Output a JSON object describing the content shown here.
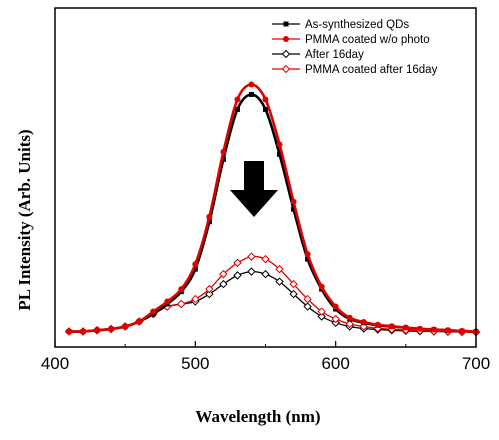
{
  "chart_data": {
    "type": "line",
    "xlabel": "Wavelength (nm)",
    "ylabel": "PL Intensity (Arb. Units)",
    "xlim": [
      400,
      700
    ],
    "ylim": [
      0,
      1.05
    ],
    "x_ticks": [
      "400",
      "500",
      "600",
      "700"
    ],
    "y_ticks_labeled": false,
    "grid": false,
    "legend_position": "top-right",
    "annotation": "down-arrow-between-peak-groups",
    "series": [
      {
        "name": "As-synthesized QDs",
        "color": "#000000",
        "marker": "filled-square",
        "x": [
          410,
          420,
          430,
          440,
          450,
          460,
          470,
          480,
          490,
          500,
          510,
          520,
          530,
          540,
          550,
          560,
          570,
          580,
          590,
          600,
          610,
          620,
          630,
          640,
          650,
          660,
          670,
          680,
          690,
          700
        ],
        "y": [
          0.01,
          0.01,
          0.015,
          0.02,
          0.03,
          0.05,
          0.08,
          0.12,
          0.17,
          0.26,
          0.45,
          0.7,
          0.9,
          0.96,
          0.9,
          0.72,
          0.5,
          0.3,
          0.18,
          0.1,
          0.06,
          0.045,
          0.035,
          0.03,
          0.025,
          0.02,
          0.018,
          0.015,
          0.012,
          0.01
        ]
      },
      {
        "name": "PMMA coated w/o photo",
        "color": "#e00000",
        "marker": "filled-circle",
        "x": [
          410,
          420,
          430,
          440,
          450,
          460,
          470,
          480,
          490,
          500,
          510,
          520,
          530,
          540,
          550,
          560,
          570,
          580,
          590,
          600,
          610,
          620,
          630,
          640,
          650,
          660,
          670,
          680,
          690,
          700
        ],
        "y": [
          0.01,
          0.01,
          0.015,
          0.02,
          0.03,
          0.05,
          0.09,
          0.13,
          0.18,
          0.28,
          0.47,
          0.73,
          0.94,
          1.0,
          0.94,
          0.76,
          0.53,
          0.32,
          0.19,
          0.11,
          0.065,
          0.048,
          0.037,
          0.031,
          0.026,
          0.021,
          0.018,
          0.015,
          0.012,
          0.01
        ]
      },
      {
        "name": "After 16day",
        "color": "#000000",
        "marker": "open-diamond",
        "x": [
          410,
          420,
          430,
          440,
          450,
          460,
          470,
          480,
          490,
          500,
          510,
          520,
          530,
          540,
          550,
          560,
          570,
          580,
          590,
          600,
          610,
          620,
          630,
          640,
          650,
          660,
          670,
          680,
          690,
          700
        ],
        "y": [
          0.01,
          0.01,
          0.015,
          0.02,
          0.03,
          0.05,
          0.08,
          0.11,
          0.12,
          0.13,
          0.16,
          0.2,
          0.235,
          0.25,
          0.24,
          0.21,
          0.16,
          0.11,
          0.07,
          0.045,
          0.03,
          0.022,
          0.018,
          0.015,
          0.013,
          0.011,
          0.01,
          0.009,
          0.008,
          0.007
        ]
      },
      {
        "name": "PMMA coated after 16day",
        "color": "#e00000",
        "marker": "open-diamond",
        "x": [
          410,
          420,
          430,
          440,
          450,
          460,
          470,
          480,
          490,
          500,
          510,
          520,
          530,
          540,
          550,
          560,
          570,
          580,
          590,
          600,
          610,
          620,
          630,
          640,
          650,
          660,
          670,
          680,
          690,
          700
        ],
        "y": [
          0.01,
          0.01,
          0.015,
          0.02,
          0.03,
          0.05,
          0.08,
          0.11,
          0.12,
          0.14,
          0.18,
          0.24,
          0.285,
          0.31,
          0.3,
          0.26,
          0.2,
          0.14,
          0.09,
          0.06,
          0.04,
          0.03,
          0.023,
          0.019,
          0.016,
          0.013,
          0.011,
          0.01,
          0.009,
          0.008
        ]
      }
    ]
  }
}
